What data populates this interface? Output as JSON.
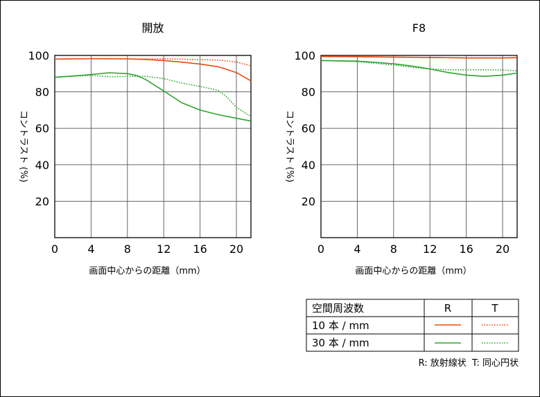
{
  "chart_data": [
    {
      "type": "line",
      "title": "開放",
      "xlabel": "画面中心からの距離（mm）",
      "ylabel": "コントラスト (%)",
      "xlim": [
        0,
        21.6
      ],
      "ylim": [
        0,
        100
      ],
      "xticks": [
        0,
        4,
        8,
        12,
        16,
        20
      ],
      "yticks": [
        20,
        40,
        60,
        80,
        100
      ],
      "series": [
        {
          "name": "10 本 / mm R",
          "style": "solid",
          "color": "#e8490f",
          "x": [
            0,
            4,
            8,
            10,
            12,
            14,
            16,
            18,
            20,
            21.6
          ],
          "y": [
            98,
            98.2,
            98.1,
            97.8,
            97.2,
            96.3,
            95.3,
            93.8,
            90.6,
            86
          ]
        },
        {
          "name": "10 本 / mm T",
          "style": "dotted",
          "color": "#e8490f",
          "x": [
            0,
            4,
            8,
            12,
            16,
            18,
            20,
            21.6
          ],
          "y": [
            98,
            98.2,
            98.1,
            98.1,
            97.7,
            97.4,
            96.4,
            94.3
          ]
        },
        {
          "name": "30 本 / mm R",
          "style": "solid",
          "color": "#2ea32e",
          "x": [
            0,
            2,
            4,
            6,
            8,
            9,
            10,
            12,
            14,
            16,
            18,
            20,
            21.6
          ],
          "y": [
            88,
            88.7,
            89.5,
            90.5,
            90,
            89,
            86.8,
            80.5,
            74,
            70,
            67.5,
            65.5,
            64
          ]
        },
        {
          "name": "30 本 / mm T",
          "style": "dotted",
          "color": "#2ea32e",
          "x": [
            0,
            2,
            4,
            6,
            8,
            10,
            12,
            14,
            16,
            18,
            19,
            20,
            21.6
          ],
          "y": [
            88,
            88.6,
            89,
            88.3,
            88.5,
            88.5,
            87.3,
            84.8,
            83,
            80.8,
            77,
            71.5,
            66.5
          ]
        }
      ]
    },
    {
      "type": "line",
      "title": "F8",
      "xlabel": "画面中心からの距離（mm）",
      "ylabel": "コントラスト (%)",
      "xlim": [
        0,
        21.6
      ],
      "ylim": [
        0,
        100
      ],
      "xticks": [
        0,
        4,
        8,
        12,
        16,
        20
      ],
      "yticks": [
        20,
        40,
        60,
        80,
        100
      ],
      "series": [
        {
          "name": "10 本 / mm R",
          "style": "solid",
          "color": "#e8490f",
          "x": [
            0,
            4,
            8,
            12,
            16,
            20,
            21.6
          ],
          "y": [
            99.4,
            99.3,
            99.1,
            98.9,
            98.6,
            98.6,
            98.8
          ]
        },
        {
          "name": "10 本 / mm T",
          "style": "dotted",
          "color": "#e8490f",
          "x": [
            0,
            4,
            8,
            12,
            16,
            20,
            21.6
          ],
          "y": [
            99.4,
            99.3,
            99.1,
            98.9,
            98.7,
            98.6,
            98.7
          ]
        },
        {
          "name": "30 本 / mm R",
          "style": "solid",
          "color": "#2ea32e",
          "x": [
            0,
            4,
            6,
            8,
            10,
            12,
            14,
            16,
            18,
            20,
            21.6
          ],
          "y": [
            97.2,
            96.9,
            96.2,
            95.4,
            94.2,
            92.6,
            90.6,
            89.2,
            88.5,
            89.2,
            90.3
          ]
        },
        {
          "name": "30 本 / mm T",
          "style": "dotted",
          "color": "#2ea32e",
          "x": [
            0,
            4,
            8,
            10,
            12,
            14,
            16,
            18,
            20,
            21.6
          ],
          "y": [
            97.2,
            96.6,
            94.7,
            93.5,
            92.5,
            92.1,
            92.1,
            92.1,
            92,
            91.5
          ]
        }
      ]
    }
  ],
  "legend": {
    "header": "空間周波数",
    "col_r": "R",
    "col_t": "T",
    "rows": [
      {
        "label": "10 本 / mm",
        "color": "#e8490f"
      },
      {
        "label": "30 本 / mm",
        "color": "#2ea32e"
      }
    ]
  },
  "footnote": "R: 放射線状  T: 同心円状"
}
